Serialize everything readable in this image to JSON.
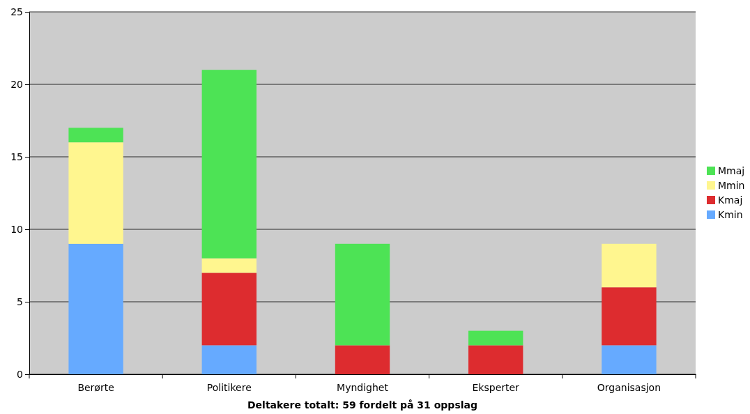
{
  "chart_data": {
    "type": "bar",
    "stacked": true,
    "xlabel": "Deltakere totalt: 59 fordelt på 31 oppslag",
    "categories": [
      "Berørte",
      "Politikere",
      "Myndighet",
      "Eksperter",
      "Organisasjon"
    ],
    "series": [
      {
        "name": "Kmin",
        "color": "#66aaff",
        "values": [
          9,
          2,
          0,
          0,
          2
        ]
      },
      {
        "name": "Kmaj",
        "color": "#dd2c2f",
        "values": [
          0,
          5,
          2,
          2,
          4
        ]
      },
      {
        "name": "Mmin",
        "color": "#fff68f",
        "values": [
          7,
          1,
          0,
          0,
          3
        ]
      },
      {
        "name": "Mmaj",
        "color": "#4de355",
        "values": [
          1,
          13,
          7,
          1,
          0
        ]
      }
    ],
    "ylim": [
      0,
      25
    ],
    "yticks": [
      0,
      5,
      10,
      15,
      20,
      25
    ],
    "grid": "y",
    "legend": "right"
  }
}
